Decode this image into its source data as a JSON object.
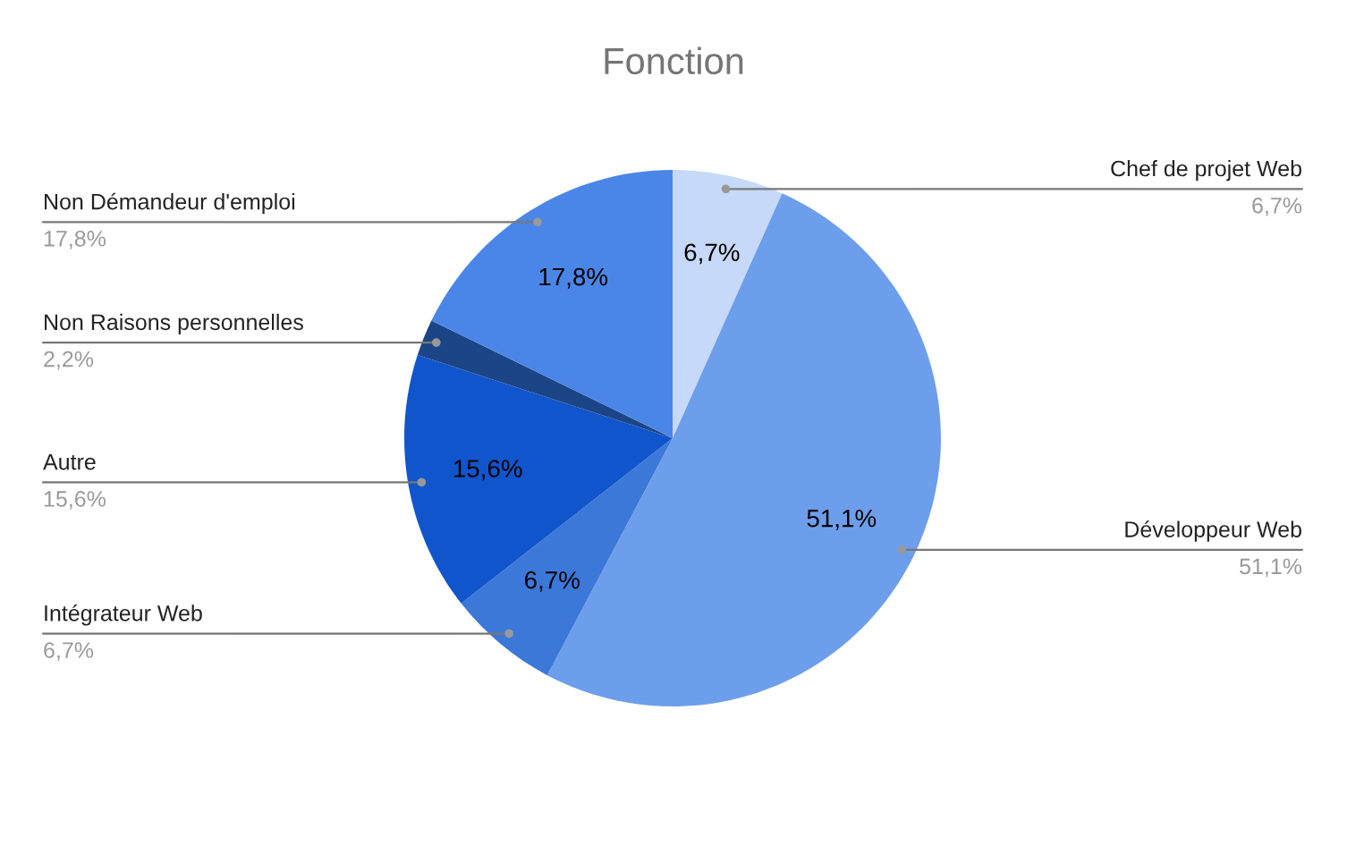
{
  "chart_data": {
    "type": "pie",
    "title": "Fonction",
    "categories": [
      "Chef de projet Web",
      "Développeur Web",
      "Intégrateur Web",
      "Autre",
      "Non Raisons personnelles",
      "Non Démandeur d'emploi"
    ],
    "values": [
      6.7,
      51.1,
      6.7,
      15.6,
      2.2,
      17.8
    ],
    "value_labels": [
      "6,7%",
      "51,1%",
      "6,7%",
      "15,6%",
      "2,2%",
      "17,8%"
    ],
    "colors": [
      "#c6d9f8",
      "#6d9eeb",
      "#3c78d8",
      "#1155cc",
      "#1c4587",
      "#4a86e8"
    ],
    "legend": false
  }
}
